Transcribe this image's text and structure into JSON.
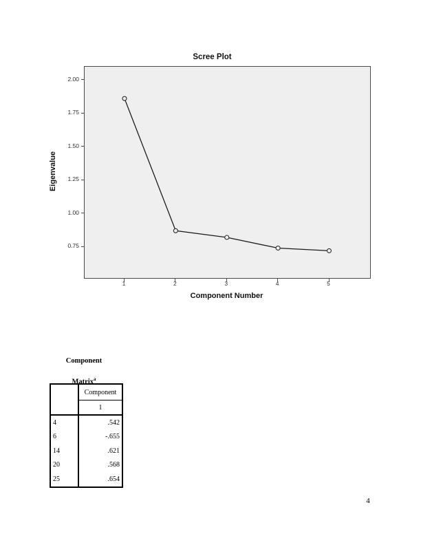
{
  "page": {
    "number": "4"
  },
  "chart_data": {
    "type": "line",
    "title": "Scree Plot",
    "xlabel": "Component Number",
    "ylabel": "Eigenvalue",
    "x": [
      1,
      2,
      3,
      4,
      5
    ],
    "series": [
      {
        "name": "Eigenvalue",
        "values": [
          1.86,
          0.87,
          0.82,
          0.74,
          0.72
        ]
      }
    ],
    "xticks": [
      "1",
      "2",
      "3",
      "4",
      "5"
    ],
    "xtick_values": [
      1,
      2,
      3,
      4,
      5
    ],
    "yticks": [
      "2.00",
      "1.75",
      "1.50",
      "1.25",
      "1.00",
      "0.75"
    ],
    "ytick_values": [
      2.0,
      1.75,
      1.5,
      1.25,
      1.0,
      0.75
    ],
    "xlim": [
      0.22,
      5.8
    ],
    "ylim": [
      0.516,
      2.098
    ],
    "grid": false,
    "legend": false,
    "marker": "open-circle",
    "plot_bg_color": "#f0efef",
    "line_color": "#1a1a1a",
    "marker_stroke_color": "#2a2a2a"
  },
  "component_matrix": {
    "title_line1": "Component",
    "title_line2": "Matrix",
    "title_superscript": "a",
    "column_header": "Component",
    "component_number": "1",
    "rows": [
      {
        "label": "4",
        "value": ".542"
      },
      {
        "label": "6",
        "value": "-.655"
      },
      {
        "label": "14",
        "value": ".621"
      },
      {
        "label": "20",
        "value": ".568"
      },
      {
        "label": "25",
        "value": ".654"
      }
    ]
  }
}
